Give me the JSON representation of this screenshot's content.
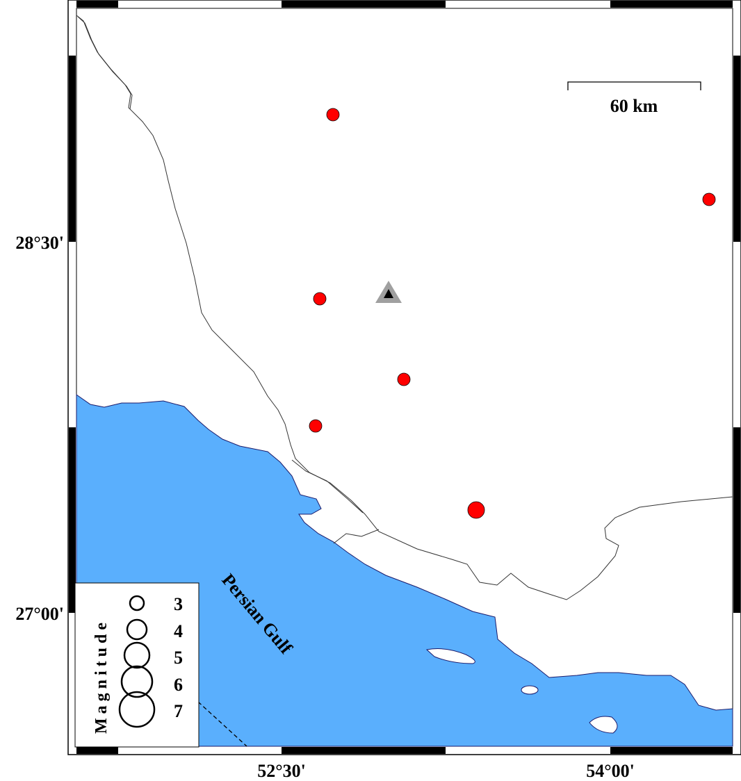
{
  "map": {
    "axes": {
      "lat_labels": [
        "28°30'",
        "27°00'"
      ],
      "lon_labels": [
        "52°30'",
        "54°00'"
      ]
    },
    "scale_bar": {
      "label": "60 km"
    },
    "sea_label": "Persian Gulf",
    "colors": {
      "sea": "#5aaffd",
      "land": "#ffffff",
      "event": "#ff0000",
      "station": "#a0a0a0"
    },
    "events": [
      {
        "magnitude": 4
      },
      {
        "magnitude": 4
      },
      {
        "magnitude": 4
      },
      {
        "magnitude": 4
      },
      {
        "magnitude": 4
      },
      {
        "magnitude": 4.8
      }
    ],
    "station": {
      "symbol": "triangle"
    },
    "legend": {
      "title": "Magnitude",
      "items": [
        "3",
        "4",
        "5",
        "6",
        "7"
      ]
    }
  }
}
